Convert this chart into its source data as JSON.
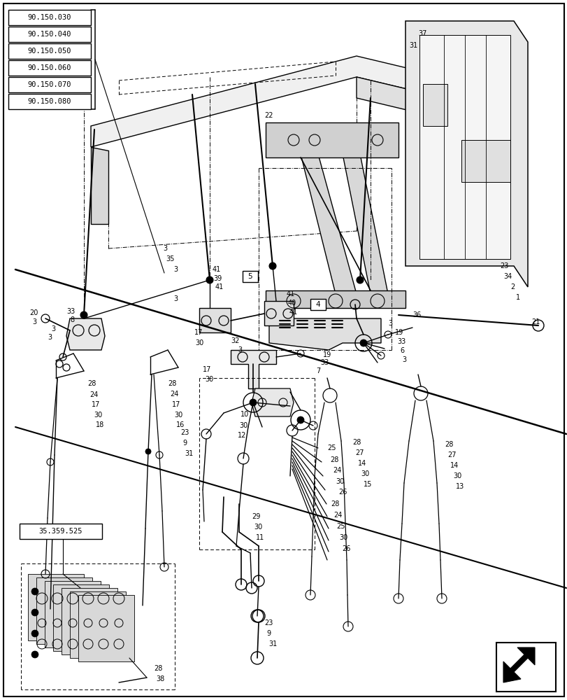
{
  "bg_color": "#ffffff",
  "ref_boxes": [
    "90.150.030",
    "90.150.040",
    "90.150.050",
    "90.150.060",
    "90.150.070",
    "90.150.080"
  ],
  "bottom_ref": "35.359.525",
  "dpi": 100,
  "figw": 8.12,
  "figh": 10.0,
  "label_fs": 7.0,
  "small_fs": 6.5
}
